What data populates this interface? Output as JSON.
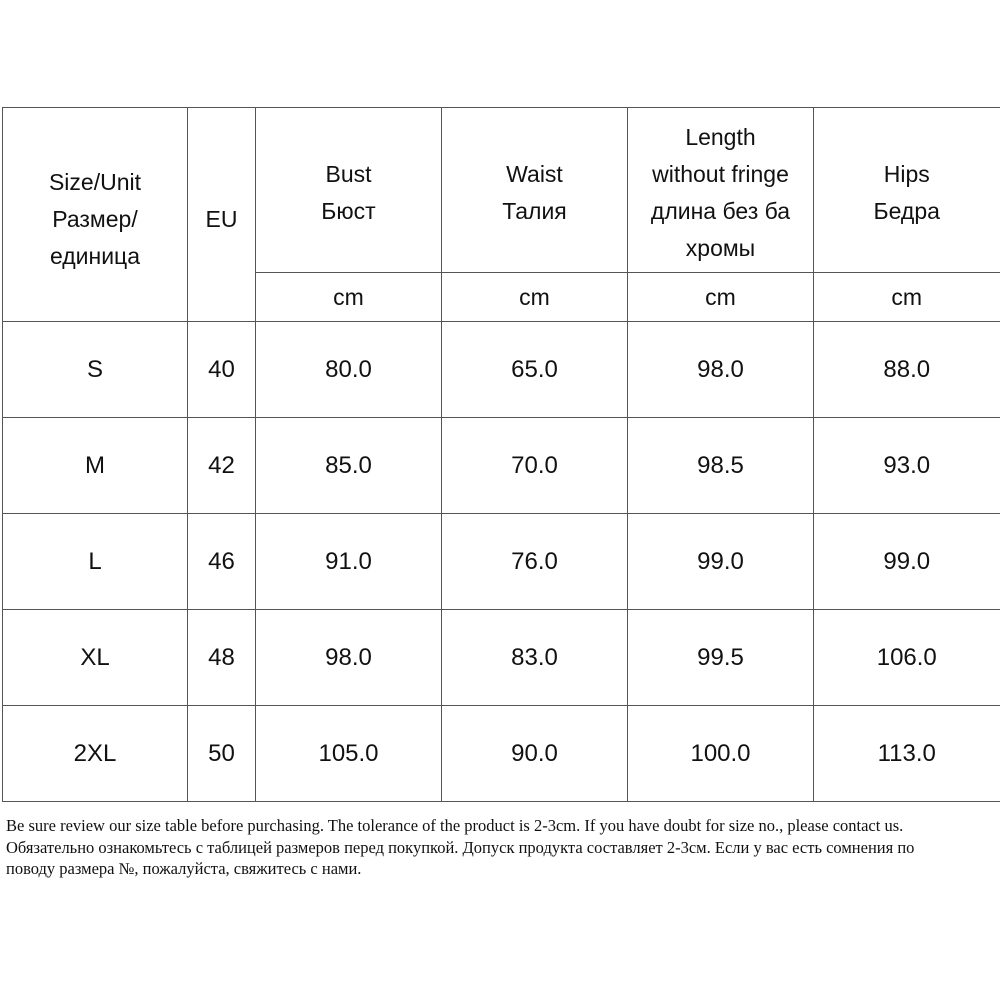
{
  "table": {
    "header": {
      "size_unit": [
        "Size/Unit",
        "Размер/",
        "единица"
      ],
      "eu": "EU",
      "bust": [
        "Bust",
        "Бюст"
      ],
      "waist": [
        "Waist",
        "Талия"
      ],
      "length": [
        "Length",
        "without fringe",
        "длина без ба",
        "хромы"
      ],
      "hips": [
        "Hips",
        "Бедра"
      ]
    },
    "units": [
      "cm",
      "cm",
      "cm",
      "cm"
    ],
    "rows": [
      {
        "size": "S",
        "eu": "40",
        "bust": "80.0",
        "waist": "65.0",
        "length": "98.0",
        "hips": "88.0"
      },
      {
        "size": "M",
        "eu": "42",
        "bust": "85.0",
        "waist": "70.0",
        "length": "98.5",
        "hips": "93.0"
      },
      {
        "size": "L",
        "eu": "46",
        "bust": "91.0",
        "waist": "76.0",
        "length": "99.0",
        "hips": "99.0"
      },
      {
        "size": "XL",
        "eu": "48",
        "bust": "98.0",
        "waist": "83.0",
        "length": "99.5",
        "hips": "106.0"
      },
      {
        "size": "2XL",
        "eu": "50",
        "bust": "105.0",
        "waist": "90.0",
        "length": "100.0",
        "hips": "113.0"
      }
    ]
  },
  "note": {
    "line1": "Be sure review our size table before purchasing. The tolerance of the product is 2-3cm. If you have doubt for size no., please contact us.",
    "line2": "Обязательно ознакомьтесь с таблицей размеров перед покупкой. Допуск продукта составляет 2-3см. Если у вас есть сомнения по",
    "line3": "поводу размера №, пожалуйста, свяжитесь с нами."
  }
}
